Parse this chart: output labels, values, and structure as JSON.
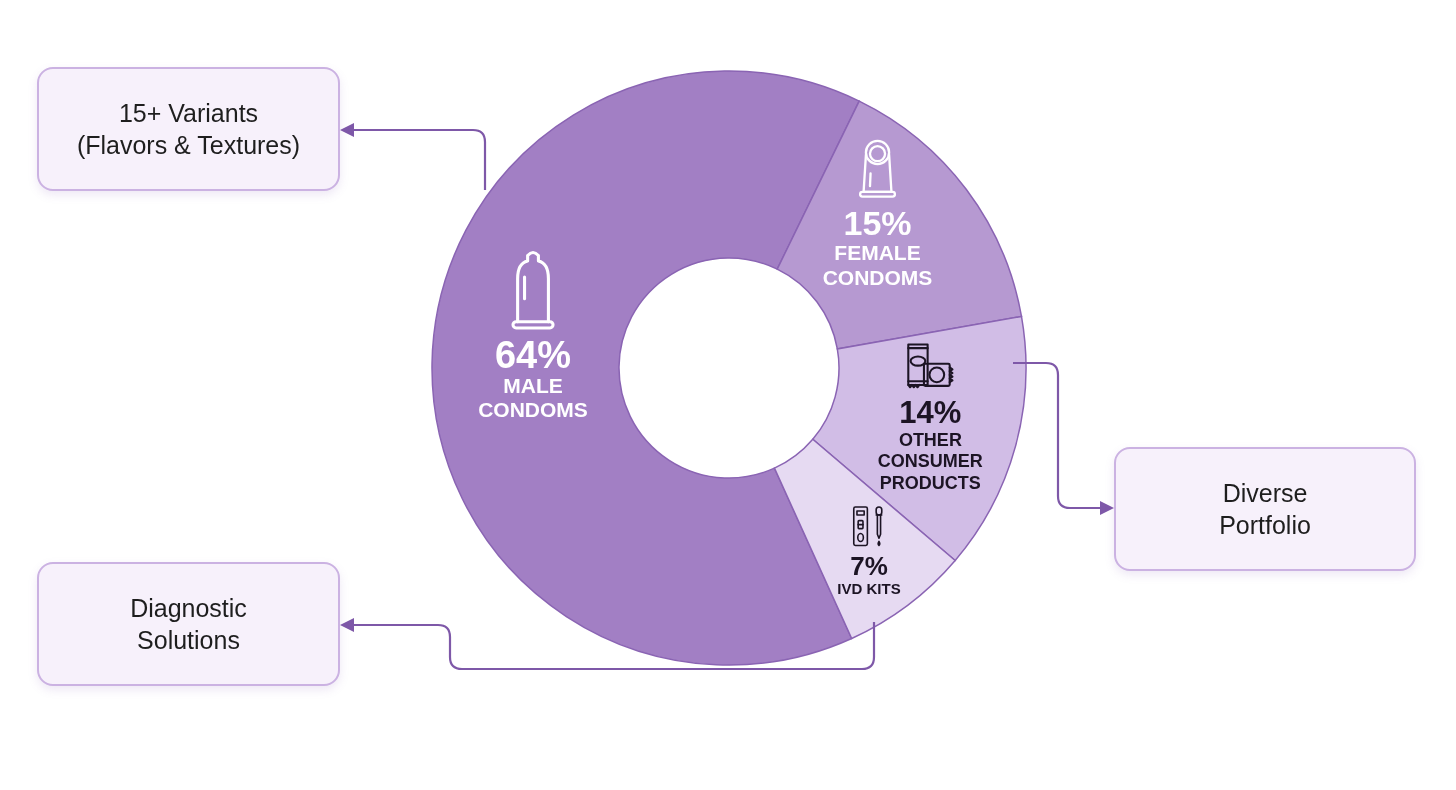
{
  "chart_data": {
    "type": "donut",
    "categories": [
      "MALE CONDOMS",
      "FEMALE CONDOMS",
      "OTHER CONSUMER PRODUCTS",
      "IVD KITS"
    ],
    "values": [
      64,
      15,
      14,
      7
    ],
    "colors": [
      "#a27fc4",
      "#b699d1",
      "#d1bde6",
      "#e6daf2"
    ],
    "value_labels": [
      "64%",
      "15%",
      "14%",
      "7%"
    ],
    "annotations": [
      "15+ Variants (Flavors & Textures)",
      "Diverse Portfolio",
      "Diagnostic Solutions"
    ]
  }
}
